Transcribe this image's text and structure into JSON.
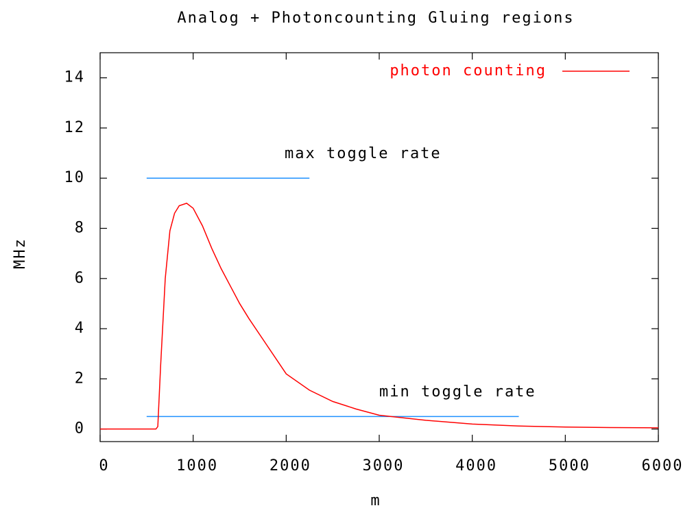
{
  "chart_data": {
    "type": "line",
    "title": "Analog + Photoncounting Gluing regions",
    "x_label": "m",
    "y_label": "MHz",
    "xlim": [
      0,
      6000
    ],
    "xticks": [
      0,
      1000,
      2000,
      3000,
      4000,
      5000,
      6000
    ],
    "ylim": [
      -0.5,
      15
    ],
    "yticks": [
      0,
      2,
      4,
      6,
      8,
      10,
      12,
      14
    ],
    "legend": "top-right",
    "series": [
      {
        "name": "photon counting",
        "color": "#ff0000",
        "x": [
          0,
          300,
          600,
          620,
          650,
          700,
          750,
          800,
          850,
          930,
          1000,
          1100,
          1200,
          1300,
          1400,
          1500,
          1600,
          1800,
          2000,
          2250,
          2500,
          2750,
          3000,
          3500,
          4000,
          4500,
          5000,
          5500,
          6000
        ],
        "values": [
          0,
          0,
          0,
          0.1,
          2.5,
          6.0,
          7.9,
          8.6,
          8.9,
          9.0,
          8.8,
          8.1,
          7.2,
          6.4,
          5.7,
          5.0,
          4.4,
          3.3,
          2.2,
          1.55,
          1.1,
          0.8,
          0.55,
          0.35,
          0.2,
          0.12,
          0.08,
          0.06,
          0.05
        ]
      }
    ],
    "lines": [
      {
        "label": "max toggle rate",
        "color": "#1e90ff",
        "x": [
          500,
          2250
        ],
        "values": [
          10,
          10
        ]
      },
      {
        "label": "min toggle rate",
        "color": "#1e90ff",
        "x": [
          500,
          4500
        ],
        "values": [
          0.5,
          0.5
        ]
      }
    ]
  }
}
